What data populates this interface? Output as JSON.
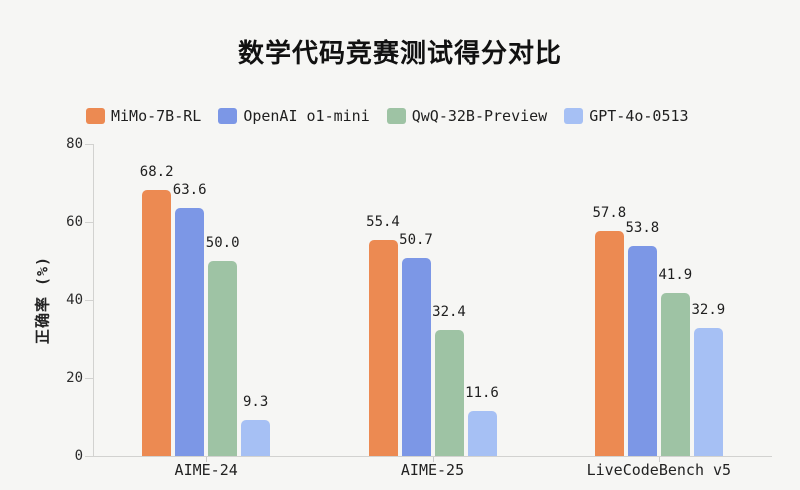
{
  "chart_data": {
    "type": "bar",
    "title": "数学代码竞赛测试得分对比",
    "xlabel": "",
    "ylabel": "正确率 (%)",
    "categories": [
      "AIME-24",
      "AIME-25",
      "LiveCodeBench v5"
    ],
    "series": [
      {
        "name": "MiMo-7B-RL",
        "color": "#EC8A52",
        "values": [
          68.2,
          55.4,
          57.8
        ]
      },
      {
        "name": "OpenAI o1-mini",
        "color": "#7C97E6",
        "values": [
          63.6,
          50.7,
          53.8
        ]
      },
      {
        "name": "QwQ-32B-Preview",
        "color": "#9EC3A4",
        "values": [
          50.0,
          32.4,
          41.9
        ]
      },
      {
        "name": "GPT-4o-0513",
        "color": "#A6C0F4",
        "values": [
          9.3,
          11.6,
          32.9
        ]
      }
    ],
    "ylim": [
      0,
      80
    ],
    "yticks": [
      0,
      20,
      40,
      60,
      80
    ],
    "grid": false,
    "legend_position": "top",
    "value_labels_shown": true,
    "colors": {
      "background": "#F6F6F4",
      "axis_line": "#D2D2D0",
      "tick_text": "#2B2B2B",
      "value_text": "#1F1F1F",
      "title_text": "#111111"
    }
  }
}
